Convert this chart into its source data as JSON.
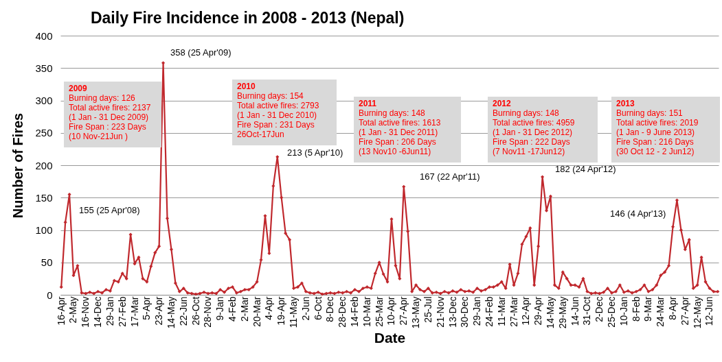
{
  "chart_data": {
    "type": "line",
    "title": "Daily Fire Incidence in 2008  - 2013 (Nepal)",
    "xlabel": "Date",
    "ylabel": "Number of Fires",
    "categories": [
      "16-Apr",
      null,
      null,
      "2-May",
      null,
      null,
      "16-Nov",
      null,
      null,
      "14-Dec",
      null,
      null,
      "29-Jan",
      null,
      null,
      "27-Feb",
      null,
      null,
      "17-Mar",
      null,
      null,
      "5-Apr",
      null,
      null,
      "23-Apr",
      null,
      null,
      "14-May",
      null,
      null,
      "22-Jun",
      null,
      null,
      "26-Oct",
      null,
      null,
      "28-Nov",
      null,
      null,
      "9-Jan",
      null,
      null,
      "4-Feb",
      null,
      null,
      "2-Mar",
      null,
      null,
      "20-Mar",
      null,
      null,
      "4-Apr",
      null,
      null,
      "19-Apr",
      null,
      null,
      "11-May",
      null,
      null,
      "2-Jun",
      null,
      null,
      "6-Oct",
      null,
      null,
      "8-Dec",
      null,
      null,
      "28-Dec",
      null,
      null,
      "14-Feb",
      null,
      null,
      "10-Mar",
      null,
      null,
      "25-Mar",
      null,
      null,
      "10-Apr",
      null,
      null,
      "27-Apr",
      null,
      null,
      "13-May",
      null,
      null,
      "25-Jul",
      null,
      null,
      "21-Nov",
      null,
      null,
      "13-Dec",
      null,
      null,
      "30-Dec",
      null,
      null,
      "29-Jan",
      null,
      null,
      "24-Feb",
      null,
      null,
      "11-Mar",
      null,
      null,
      "27-Mar",
      null,
      null,
      "12-Apr",
      null,
      null,
      "29-Apr",
      null,
      null,
      "14-May",
      null,
      null,
      "29-May",
      null,
      null,
      "14-Jun",
      null,
      null,
      "31-Oct",
      null,
      null,
      "2-Dec",
      null,
      null,
      "25-Dec",
      null,
      null,
      "10-Jan",
      null,
      null,
      "8-Feb",
      null,
      null,
      "9-Mar",
      null,
      null,
      "24-Mar",
      null,
      null,
      "8-Apr",
      null,
      null,
      "27-Apr",
      null,
      null,
      "12-May",
      null,
      null,
      "12-Jun",
      null,
      null
    ],
    "series": [
      {
        "color": "#c0282d",
        "values": [
          12,
          112,
          155,
          30,
          45,
          3,
          2,
          4,
          2,
          5,
          3,
          8,
          6,
          22,
          20,
          33,
          25,
          93,
          48,
          58,
          25,
          20,
          44,
          65,
          75,
          358,
          118,
          70,
          18,
          5,
          10,
          3,
          2,
          1,
          2,
          4,
          2,
          3,
          2,
          8,
          4,
          10,
          12,
          3,
          5,
          8,
          8,
          12,
          20,
          54,
          122,
          64,
          168,
          213,
          150,
          95,
          85,
          10,
          12,
          18,
          5,
          3,
          2,
          4,
          1,
          2,
          3,
          2,
          4,
          3,
          5,
          3,
          8,
          5,
          10,
          12,
          10,
          33,
          50,
          32,
          20,
          117,
          45,
          25,
          167,
          98,
          5,
          15,
          8,
          5,
          10,
          3,
          4,
          2,
          5,
          3,
          6,
          4,
          8,
          5,
          6,
          4,
          10,
          6,
          8,
          12,
          12,
          15,
          20,
          10,
          47,
          15,
          33,
          78,
          90,
          103,
          15,
          75,
          182,
          130,
          152,
          15,
          10,
          35,
          25,
          15,
          15,
          12,
          25,
          5,
          2,
          3,
          2,
          4,
          10,
          3,
          5,
          15,
          4,
          6,
          3,
          5,
          8,
          15,
          5,
          8,
          15,
          30,
          35,
          45,
          105,
          146,
          100,
          70,
          85,
          10,
          15,
          58,
          20,
          10,
          5,
          5
        ]
      }
    ],
    "ylim": [
      0,
      400
    ],
    "yticks": [
      0,
      50,
      100,
      150,
      200,
      250,
      300,
      350,
      400
    ],
    "grid": "y",
    "marker": "diamond",
    "line_style": "solid",
    "annotations": [
      "155 (25 Apr'08)",
      "358 (25 Apr'09)",
      "213 (5 Apr'10)",
      "167 (22 Apr'11)",
      "182 (24 Apr'12)",
      "146 (4 Apr'13)",
      "2009\nBurning days: 126\nTotal active fires: 2137\n(1 Jan - 31 Dec 2009)\nFire Span : 223 Days\n(10 Nov-21Jun )",
      "2010\nBurning days: 154\nTotal active fires: 2793\n(1 Jan - 31 Dec 2010)\nFire Span : 231 Days\n26Oct-17Jun",
      "2011\nBurning days: 148\nTotal active fires: 1613\n(1 Jan - 31 Dec 2011)\nFire Span : 206 Days\n(13 Nov10 -6Jun11)",
      "2012\nBurning days: 148\nTotal active fires: 4959\n(1 Jan - 31 Dec 2012)\nFire Span : 222 Days\n(7 Nov11 -17Jun12)",
      "2013\nBurning days: 151\nTotal active fires: 2019\n(1 Jan - 9 June 2013)\nFire Span : 216 Days\n(30 Oct 12 - 2 Jun12)"
    ]
  }
}
